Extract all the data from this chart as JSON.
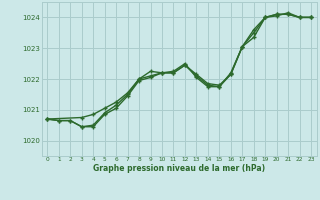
{
  "background_color": "#cce8e8",
  "grid_color": "#aacccc",
  "line_color": "#2d6a2d",
  "xlabel": "Graphe pression niveau de la mer (hPa)",
  "xlim": [
    -0.5,
    23.5
  ],
  "ylim": [
    1019.5,
    1024.5
  ],
  "yticks": [
    1020,
    1021,
    1022,
    1023,
    1024
  ],
  "xticks": [
    0,
    1,
    2,
    3,
    4,
    5,
    6,
    7,
    8,
    9,
    10,
    11,
    12,
    13,
    14,
    15,
    16,
    17,
    18,
    19,
    20,
    21,
    22,
    23
  ],
  "series1_x": [
    0,
    1,
    2,
    3,
    4,
    5,
    6,
    7,
    8,
    9,
    10,
    11,
    12,
    13,
    14,
    15,
    16,
    17,
    18,
    19,
    20,
    21,
    22,
    23
  ],
  "series1_y": [
    1020.7,
    1020.65,
    1020.65,
    1020.45,
    1020.45,
    1020.85,
    1021.05,
    1021.45,
    1021.95,
    1022.05,
    1022.2,
    1022.2,
    1022.45,
    1022.15,
    1021.85,
    1021.8,
    1022.15,
    1023.05,
    1023.35,
    1024.0,
    1024.1,
    1024.1,
    1024.0,
    1024.0
  ],
  "series2_x": [
    0,
    1,
    2,
    3,
    4,
    5,
    6,
    7,
    8,
    9,
    10,
    11,
    12,
    13,
    14,
    15,
    16,
    17,
    18,
    19,
    20,
    21,
    22,
    23
  ],
  "series2_y": [
    1020.7,
    1020.65,
    1020.65,
    1020.45,
    1020.5,
    1020.9,
    1021.15,
    1021.5,
    1022.0,
    1022.1,
    1022.2,
    1022.2,
    1022.45,
    1022.1,
    1021.8,
    1021.75,
    1022.2,
    1023.05,
    1023.5,
    1024.0,
    1024.1,
    1024.1,
    1024.0,
    1024.0
  ],
  "series3_x": [
    0,
    3,
    4,
    5,
    6,
    7,
    8,
    9,
    10,
    11,
    12,
    13,
    14,
    15,
    16,
    17,
    18,
    19,
    20,
    21,
    22,
    23
  ],
  "series3_y": [
    1020.7,
    1020.75,
    1020.85,
    1021.05,
    1021.25,
    1021.55,
    1022.0,
    1022.25,
    1022.2,
    1022.25,
    1022.5,
    1022.05,
    1021.75,
    1021.75,
    1022.15,
    1023.05,
    1023.6,
    1024.0,
    1024.05,
    1024.15,
    1024.0,
    1024.0
  ]
}
